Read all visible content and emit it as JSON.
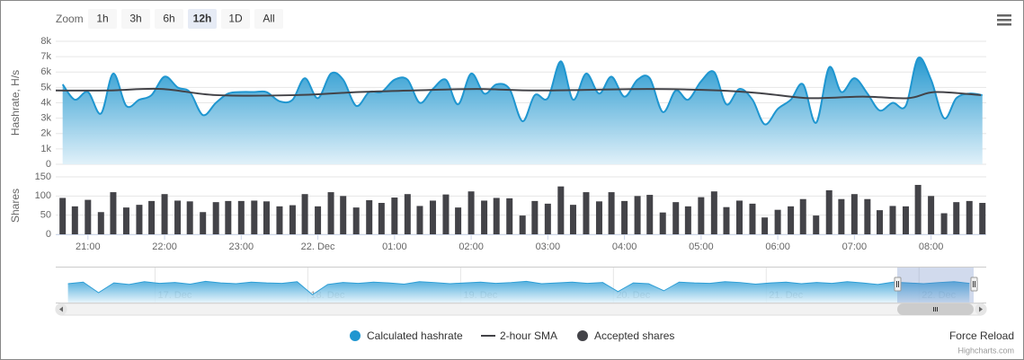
{
  "toolbar": {
    "zoom_label": "Zoom",
    "buttons": [
      "1h",
      "3h",
      "6h",
      "12h",
      "1D",
      "All"
    ],
    "selected": 3,
    "action": "Force Reload",
    "credits": "Highcharts.com"
  },
  "chart_data": [
    {
      "type": "line",
      "ylabel": "Hashrate, H/s",
      "y2label": "Shares",
      "x": [
        20.67,
        20.83,
        21,
        21.17,
        21.33,
        21.5,
        21.67,
        21.83,
        22,
        22.17,
        22.33,
        22.5,
        22.67,
        22.83,
        23,
        23.17,
        23.33,
        23.5,
        23.67,
        23.83,
        24,
        24.17,
        24.33,
        24.5,
        24.67,
        24.83,
        25,
        25.17,
        25.33,
        25.5,
        25.67,
        25.83,
        26,
        26.17,
        26.33,
        26.5,
        26.67,
        26.83,
        27,
        27.17,
        27.33,
        27.5,
        27.67,
        27.83,
        28,
        28.17,
        28.33,
        28.5,
        28.67,
        28.83,
        29,
        29.17,
        29.33,
        29.5,
        29.67,
        29.83,
        30,
        30.17,
        30.33,
        30.5,
        30.67,
        30.83,
        31,
        31.17,
        31.33,
        31.5,
        31.67,
        31.83,
        32,
        32.17,
        32.33,
        32.5,
        32.67
      ],
      "xlim": [
        20.58,
        32.72
      ],
      "xticks": [
        {
          "value": 21,
          "label": "21:00"
        },
        {
          "value": 22,
          "label": "22:00"
        },
        {
          "value": 23,
          "label": "23:00"
        },
        {
          "value": 24,
          "label": "22. Dec"
        },
        {
          "value": 25,
          "label": "01:00"
        },
        {
          "value": 26,
          "label": "02:00"
        },
        {
          "value": 27,
          "label": "03:00"
        },
        {
          "value": 28,
          "label": "04:00"
        },
        {
          "value": 29,
          "label": "05:00"
        },
        {
          "value": 30,
          "label": "06:00"
        },
        {
          "value": 31,
          "label": "07:00"
        },
        {
          "value": 32,
          "label": "08:00"
        }
      ],
      "ylim": [
        0,
        8000
      ],
      "yticks": [
        0,
        {
          "value": 1000,
          "label": "1k"
        },
        {
          "value": 2000,
          "label": "2k"
        },
        {
          "value": 3000,
          "label": "3k"
        },
        {
          "value": 4000,
          "label": "4k"
        },
        {
          "value": 5000,
          "label": "5k"
        },
        {
          "value": 6000,
          "label": "6k"
        },
        {
          "value": 7000,
          "label": "7k"
        },
        {
          "value": 8000,
          "label": "8k"
        }
      ],
      "y2lim": [
        0,
        150
      ],
      "y2ticks": [
        0,
        50,
        100,
        150
      ],
      "grid": true,
      "legend": "bottom",
      "series": [
        {
          "name": "Calculated hashrate",
          "type": "area",
          "color": "#1f96d0",
          "values": [
            5200,
            4200,
            4700,
            3300,
            5900,
            3800,
            4200,
            4500,
            5700,
            5000,
            4700,
            3200,
            4000,
            4600,
            4700,
            4700,
            4700,
            4100,
            4200,
            5600,
            4300,
            5900,
            5500,
            3800,
            4700,
            4700,
            5500,
            5500,
            4000,
            4900,
            5500,
            3900,
            5900,
            4600,
            5200,
            4900,
            2800,
            4500,
            4300,
            6700,
            4200,
            5900,
            4600,
            5700,
            4400,
            5500,
            5600,
            3400,
            4800,
            4200,
            5400,
            6000,
            3900,
            4900,
            4200,
            2600,
            3600,
            4200,
            5200,
            2700,
            6300,
            4700,
            5600,
            4600,
            3500,
            4000,
            3800,
            6900,
            5500,
            3000,
            4300,
            4600,
            4500
          ]
        },
        {
          "name": "2-hour SMA",
          "type": "line",
          "color": "#434348",
          "x": [
            20.58,
            21.26,
            21.96,
            22.67,
            23.72,
            24.54,
            25.25,
            26.07,
            26.89,
            28.3,
            29.24,
            29.82,
            30.41,
            31.11,
            31.7,
            32.05,
            32.65
          ],
          "values": [
            4800,
            4800,
            4900,
            4500,
            4500,
            4700,
            4800,
            4900,
            4800,
            4900,
            4800,
            4600,
            4300,
            4400,
            4300,
            4700,
            4500
          ]
        },
        {
          "name": "Accepted shares",
          "type": "column",
          "color": "#434348",
          "axis": "y2",
          "values": [
            95,
            73,
            90,
            58,
            110,
            70,
            77,
            87,
            105,
            88,
            86,
            58,
            84,
            87,
            87,
            88,
            86,
            73,
            76,
            105,
            73,
            110,
            100,
            70,
            89,
            82,
            96,
            105,
            74,
            88,
            104,
            70,
            112,
            88,
            95,
            94,
            49,
            87,
            80,
            125,
            77,
            110,
            86,
            110,
            87,
            100,
            103,
            57,
            84,
            73,
            97,
            112,
            71,
            88,
            80,
            44,
            64,
            73,
            92,
            49,
            115,
            92,
            105,
            92,
            63,
            74,
            73,
            129,
            100,
            55,
            84,
            87,
            82
          ]
        }
      ]
    },
    {
      "type": "area",
      "color": "#2f9fd6",
      "x": [
        16.43,
        16.53,
        16.63,
        16.73,
        16.83,
        16.93,
        17.03,
        17.13,
        17.23,
        17.33,
        17.43,
        17.53,
        17.63,
        17.73,
        17.83,
        17.93,
        18.03,
        18.13,
        18.23,
        18.33,
        18.43,
        18.53,
        18.63,
        18.73,
        18.83,
        18.93,
        19.03,
        19.13,
        19.23,
        19.33,
        19.43,
        19.53,
        19.63,
        19.73,
        19.83,
        19.93,
        20.03,
        20.13,
        20.23,
        20.33,
        20.43,
        20.53,
        20.63,
        20.73,
        20.83,
        20.93,
        21.03,
        21.13,
        21.23,
        21.33,
        21.43,
        21.53,
        21.63,
        21.73,
        21.83,
        21.93,
        22.03,
        22.13,
        22.23,
        22.33
      ],
      "values": [
        4800,
        5200,
        2500,
        5000,
        4600,
        5300,
        4900,
        5100,
        4700,
        5400,
        5000,
        4800,
        5200,
        5000,
        4900,
        5300,
        2000,
        4600,
        5100,
        4900,
        5200,
        5000,
        4700,
        5300,
        5100,
        4800,
        5000,
        5200,
        4900,
        5100,
        5400,
        4800,
        5000,
        5200,
        4900,
        5100,
        2800,
        5000,
        4800,
        3000,
        5200,
        5000,
        4900,
        5300,
        5100,
        4700,
        5000,
        5200,
        4800,
        5100,
        4900,
        5300,
        5000,
        4600,
        5200,
        5000,
        4800,
        5100,
        5300,
        4900
      ],
      "xlim": [
        16.35,
        22.44
      ],
      "ylim": [
        0,
        8000
      ],
      "xticks": [
        {
          "value": 17,
          "label": "17. Dec"
        },
        {
          "value": 18,
          "label": "18. Dec"
        },
        {
          "value": 19,
          "label": "19. Dec"
        },
        {
          "value": 20,
          "label": "20. Dec"
        },
        {
          "value": 21,
          "label": "21. Dec"
        },
        {
          "value": 22,
          "label": "22. Dec"
        }
      ]
    }
  ]
}
